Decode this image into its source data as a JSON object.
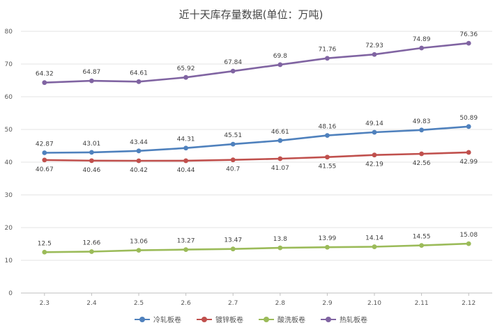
{
  "chart_data": {
    "type": "line",
    "title": "近十天库存量数据(单位：万吨)",
    "categories": [
      "2.3",
      "2.4",
      "2.5",
      "2.6",
      "2.7",
      "2.8",
      "2.9",
      "2.10",
      "2.11",
      "2.12"
    ],
    "ylim": [
      0,
      80
    ],
    "yticks": [
      0,
      10,
      20,
      30,
      40,
      50,
      60,
      70,
      80
    ],
    "grid": true,
    "legend_position": "bottom",
    "series": [
      {
        "name": "冷轧板卷",
        "color": "#4f81bd",
        "label_side": "above",
        "values": [
          42.87,
          43.01,
          43.44,
          44.31,
          45.51,
          46.61,
          48.16,
          49.14,
          49.83,
          50.89
        ],
        "labels": [
          "42.87",
          "43.01",
          "43.44",
          "44.31",
          "45.51",
          "46.61",
          "48.16",
          "49.14",
          "49.83",
          "50.89"
        ]
      },
      {
        "name": "镀锌板卷",
        "color": "#c0504d",
        "label_side": "below",
        "values": [
          40.67,
          40.46,
          40.42,
          40.44,
          40.7,
          41.07,
          41.55,
          42.19,
          42.56,
          42.99
        ],
        "labels": [
          "40.67",
          "40.46",
          "40.42",
          "40.44",
          "40.7",
          "41.07",
          "41.55",
          "42.19",
          "42.56",
          "42.99"
        ]
      },
      {
        "name": "酸洗板卷",
        "color": "#9bbb59",
        "label_side": "above",
        "values": [
          12.5,
          12.66,
          13.06,
          13.27,
          13.47,
          13.8,
          13.99,
          14.14,
          14.55,
          15.08
        ],
        "labels": [
          "12.5",
          "12.66",
          "13.06",
          "13.27",
          "13.47",
          "13.8",
          "13.99",
          "14.14",
          "14.55",
          "15.08"
        ]
      },
      {
        "name": "热轧板卷",
        "color": "#8064a2",
        "label_side": "above",
        "values": [
          64.32,
          64.87,
          64.61,
          65.92,
          67.84,
          69.8,
          71.76,
          72.93,
          74.89,
          76.36
        ],
        "labels": [
          "64.32",
          "64.87",
          "64.61",
          "65.92",
          "67.84",
          "69.8",
          "71.76",
          "72.93",
          "74.89",
          "76.36"
        ]
      }
    ]
  }
}
